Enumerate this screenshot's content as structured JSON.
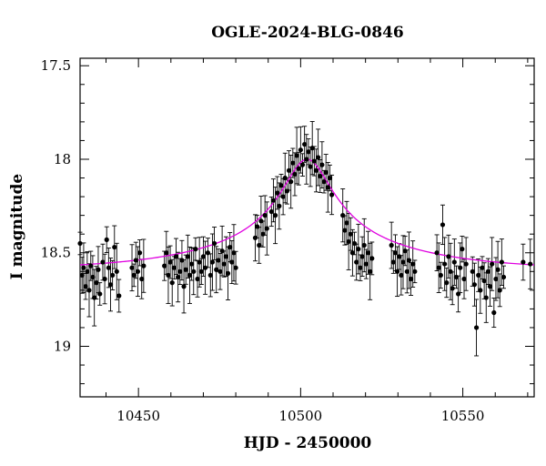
{
  "chart_data": {
    "type": "scatter",
    "title": "OGLE-2024-BLG-0846",
    "xlabel": "HJD - 2450000",
    "ylabel": "I magnitude",
    "xlim": [
      10432,
      10572
    ],
    "ylim": [
      19.27,
      17.46
    ],
    "y_inverted": true,
    "xticks": [
      10450,
      10500,
      10550
    ],
    "xtick_labels": [
      "10450",
      "10500",
      "10550"
    ],
    "yticks": [
      17.5,
      18,
      18.5,
      19
    ],
    "ytick_labels": [
      "17.5",
      "18",
      "18.5",
      "19"
    ],
    "grid": false,
    "marker_color": "#000000",
    "model_color": "#e000e0",
    "model": {
      "description_free": true,
      "t0": 10502,
      "baseline": 18.585,
      "peak": 18.0,
      "width": 9
    },
    "series": [
      {
        "values": [
          [
            10432.0,
            18.45
          ],
          [
            10432.6,
            18.62
          ],
          [
            10433.1,
            18.58
          ],
          [
            10433.7,
            18.68
          ],
          [
            10434.2,
            18.6
          ],
          [
            10434.8,
            18.7
          ],
          [
            10435.3,
            18.57
          ],
          [
            10435.9,
            18.63
          ],
          [
            10436.4,
            18.74
          ],
          [
            10437.0,
            18.66
          ],
          [
            10437.6,
            18.59
          ],
          [
            10438.1,
            18.72
          ],
          [
            10439.0,
            18.55
          ],
          [
            10439.6,
            18.64
          ],
          [
            10440.2,
            18.43
          ],
          [
            10440.8,
            18.58
          ],
          [
            10441.4,
            18.67
          ],
          [
            10442.0,
            18.62
          ],
          [
            10442.6,
            18.47
          ],
          [
            10443.3,
            18.6
          ],
          [
            10444.0,
            18.73
          ],
          [
            10448.0,
            18.58
          ],
          [
            10448.6,
            18.62
          ],
          [
            10449.2,
            18.54
          ],
          [
            10449.8,
            18.6
          ],
          [
            10450.4,
            18.5
          ],
          [
            10451.0,
            18.64
          ],
          [
            10451.6,
            18.57
          ],
          [
            10458.0,
            18.57
          ],
          [
            10458.6,
            18.5
          ],
          [
            10459.2,
            18.62
          ],
          [
            10459.8,
            18.55
          ],
          [
            10460.4,
            18.66
          ],
          [
            10461.0,
            18.58
          ],
          [
            10461.6,
            18.52
          ],
          [
            10462.2,
            18.63
          ],
          [
            10462.8,
            18.6
          ],
          [
            10463.4,
            18.54
          ],
          [
            10464.0,
            18.68
          ],
          [
            10464.6,
            18.59
          ],
          [
            10465.2,
            18.52
          ],
          [
            10465.8,
            18.62
          ],
          [
            10466.4,
            18.56
          ],
          [
            10467.0,
            18.6
          ],
          [
            10467.6,
            18.48
          ],
          [
            10468.2,
            18.64
          ],
          [
            10468.8,
            18.55
          ],
          [
            10469.4,
            18.6
          ],
          [
            10470.0,
            18.52
          ],
          [
            10470.6,
            18.58
          ],
          [
            10471.4,
            18.5
          ],
          [
            10472.2,
            18.62
          ],
          [
            10472.8,
            18.55
          ],
          [
            10473.4,
            18.45
          ],
          [
            10474.0,
            18.59
          ],
          [
            10474.6,
            18.54
          ],
          [
            10475.2,
            18.6
          ],
          [
            10475.8,
            18.49
          ],
          [
            10476.4,
            18.56
          ],
          [
            10477.0,
            18.52
          ],
          [
            10477.6,
            18.61
          ],
          [
            10478.2,
            18.47
          ],
          [
            10478.8,
            18.55
          ],
          [
            10479.4,
            18.5
          ],
          [
            10480.0,
            18.58
          ],
          [
            10486.0,
            18.42
          ],
          [
            10486.6,
            18.36
          ],
          [
            10487.2,
            18.46
          ],
          [
            10487.8,
            18.33
          ],
          [
            10488.4,
            18.4
          ],
          [
            10489.0,
            18.3
          ],
          [
            10489.6,
            18.37
          ],
          [
            10491.0,
            18.28
          ],
          [
            10491.6,
            18.22
          ],
          [
            10492.2,
            18.3
          ],
          [
            10492.8,
            18.18
          ],
          [
            10493.4,
            18.25
          ],
          [
            10494.0,
            18.14
          ],
          [
            10494.6,
            18.2
          ],
          [
            10495.2,
            18.1
          ],
          [
            10495.8,
            18.17
          ],
          [
            10496.4,
            18.06
          ],
          [
            10497.0,
            18.12
          ],
          [
            10497.6,
            18.02
          ],
          [
            10498.2,
            18.08
          ],
          [
            10498.8,
            17.98
          ],
          [
            10499.4,
            18.05
          ],
          [
            10500.0,
            17.95
          ],
          [
            10500.6,
            18.03
          ],
          [
            10501.2,
            17.92
          ],
          [
            10501.8,
            18.0
          ],
          [
            10502.4,
            17.96
          ],
          [
            10503.0,
            18.04
          ],
          [
            10503.6,
            17.94
          ],
          [
            10504.2,
            18.01
          ],
          [
            10504.8,
            18.06
          ],
          [
            10505.4,
            17.99
          ],
          [
            10506.0,
            18.09
          ],
          [
            10506.6,
            18.03
          ],
          [
            10507.2,
            18.12
          ],
          [
            10507.8,
            18.07
          ],
          [
            10508.4,
            18.15
          ],
          [
            10509.0,
            18.1
          ],
          [
            10509.6,
            18.19
          ],
          [
            10513.0,
            18.3
          ],
          [
            10513.6,
            18.38
          ],
          [
            10514.2,
            18.34
          ],
          [
            10514.8,
            18.44
          ],
          [
            10515.4,
            18.4
          ],
          [
            10516.0,
            18.5
          ],
          [
            10516.6,
            18.45
          ],
          [
            10517.2,
            18.55
          ],
          [
            10517.8,
            18.48
          ],
          [
            10518.4,
            18.58
          ],
          [
            10519.0,
            18.52
          ],
          [
            10519.6,
            18.46
          ],
          [
            10520.2,
            18.56
          ],
          [
            10520.8,
            18.5
          ],
          [
            10521.4,
            18.6
          ],
          [
            10522.0,
            18.53
          ],
          [
            10528.0,
            18.46
          ],
          [
            10528.6,
            18.55
          ],
          [
            10529.2,
            18.5
          ],
          [
            10529.8,
            18.6
          ],
          [
            10530.4,
            18.52
          ],
          [
            10531.0,
            18.62
          ],
          [
            10531.6,
            18.55
          ],
          [
            10532.2,
            18.49
          ],
          [
            10532.8,
            18.6
          ],
          [
            10533.4,
            18.54
          ],
          [
            10534.0,
            18.64
          ],
          [
            10534.6,
            18.56
          ],
          [
            10535.2,
            18.6
          ],
          [
            10542.0,
            18.5
          ],
          [
            10542.6,
            18.58
          ],
          [
            10543.2,
            18.62
          ],
          [
            10543.8,
            18.35
          ],
          [
            10544.4,
            18.56
          ],
          [
            10545.0,
            18.66
          ],
          [
            10545.6,
            18.52
          ],
          [
            10546.2,
            18.6
          ],
          [
            10546.8,
            18.69
          ],
          [
            10547.4,
            18.55
          ],
          [
            10548.0,
            18.63
          ],
          [
            10548.6,
            18.72
          ],
          [
            10549.2,
            18.58
          ],
          [
            10549.8,
            18.48
          ],
          [
            10550.4,
            18.64
          ],
          [
            10551.0,
            18.56
          ],
          [
            10553.0,
            18.6
          ],
          [
            10553.6,
            18.67
          ],
          [
            10554.2,
            18.9
          ],
          [
            10554.8,
            18.62
          ],
          [
            10555.4,
            18.7
          ],
          [
            10556.0,
            18.58
          ],
          [
            10556.6,
            18.65
          ],
          [
            10557.2,
            18.74
          ],
          [
            10557.8,
            18.6
          ],
          [
            10558.4,
            18.68
          ],
          [
            10559.0,
            18.56
          ],
          [
            10559.6,
            18.82
          ],
          [
            10560.2,
            18.64
          ],
          [
            10560.8,
            18.59
          ],
          [
            10561.4,
            18.7
          ],
          [
            10562.0,
            18.55
          ],
          [
            10562.6,
            18.63
          ],
          [
            10568.6,
            18.55
          ],
          [
            10570.8,
            18.56
          ]
        ]
      }
    ]
  }
}
